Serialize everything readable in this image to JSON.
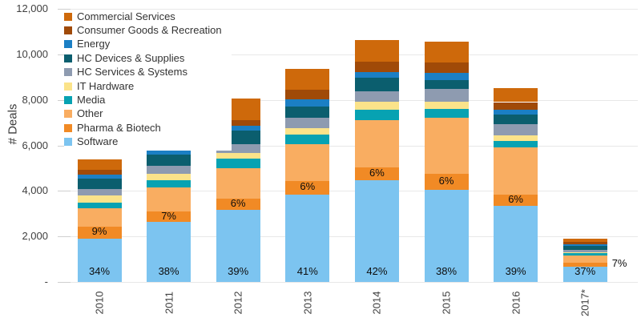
{
  "chart_data": {
    "type": "bar",
    "stacked": true,
    "title": "",
    "ylabel": "# Deals",
    "xlabel": "",
    "ylim": [
      0,
      12000
    ],
    "ytick_step": 2000,
    "ytick_labels": [
      "-",
      "2,000",
      "4,000",
      "6,000",
      "8,000",
      "10,000",
      "12,000"
    ],
    "grid": "horizontal",
    "legend_position": "top-left",
    "categories": [
      "2010",
      "2011",
      "2012",
      "2013",
      "2014",
      "2015",
      "2016",
      "2017*"
    ],
    "series": [
      {
        "name": "Commercial Services",
        "color": "#CE690B",
        "values": [
          490,
          610,
          940,
          940,
          980,
          900,
          630,
          140
        ]
      },
      {
        "name": "Consumer Goods & Recreation",
        "color": "#A04A08",
        "values": [
          190,
          270,
          260,
          400,
          430,
          470,
          350,
          110
        ]
      },
      {
        "name": "Energy",
        "color": "#1B7FC4",
        "values": [
          190,
          270,
          210,
          310,
          260,
          290,
          210,
          70
        ]
      },
      {
        "name": "HC Devices & Supplies",
        "color": "#0B5E6E",
        "values": [
          450,
          490,
          590,
          510,
          590,
          410,
          410,
          160
        ]
      },
      {
        "name": "HC Services & Systems",
        "color": "#8E9BB0",
        "values": [
          290,
          350,
          380,
          450,
          470,
          550,
          500,
          110
        ]
      },
      {
        "name": "IT Hardware",
        "color": "#FBE38A",
        "values": [
          290,
          280,
          270,
          290,
          330,
          310,
          240,
          50
        ]
      },
      {
        "name": "Media",
        "color": "#07A2B2",
        "values": [
          260,
          330,
          410,
          410,
          470,
          400,
          280,
          90
        ]
      },
      {
        "name": "Other",
        "color": "#F9AD61",
        "values": [
          800,
          1060,
          1350,
          1620,
          2090,
          2470,
          2090,
          330
        ]
      },
      {
        "name": "Pharma & Biotech",
        "color": "#F18A25",
        "values": [
          540,
          450,
          470,
          590,
          550,
          680,
          490,
          150
        ]
      },
      {
        "name": "Software",
        "color": "#7CC4F0",
        "values": [
          1900,
          2640,
          3180,
          3850,
          4470,
          4060,
          3330,
          680
        ]
      }
    ],
    "annotations": {
      "software_share": [
        "34%",
        "38%",
        "39%",
        "41%",
        "42%",
        "38%",
        "39%",
        "37%"
      ],
      "pharma_share": [
        "9%",
        "7%",
        "6%",
        "6%",
        "6%",
        "6%",
        "6%",
        "7%"
      ],
      "pharma_label_outside_last": true
    }
  }
}
